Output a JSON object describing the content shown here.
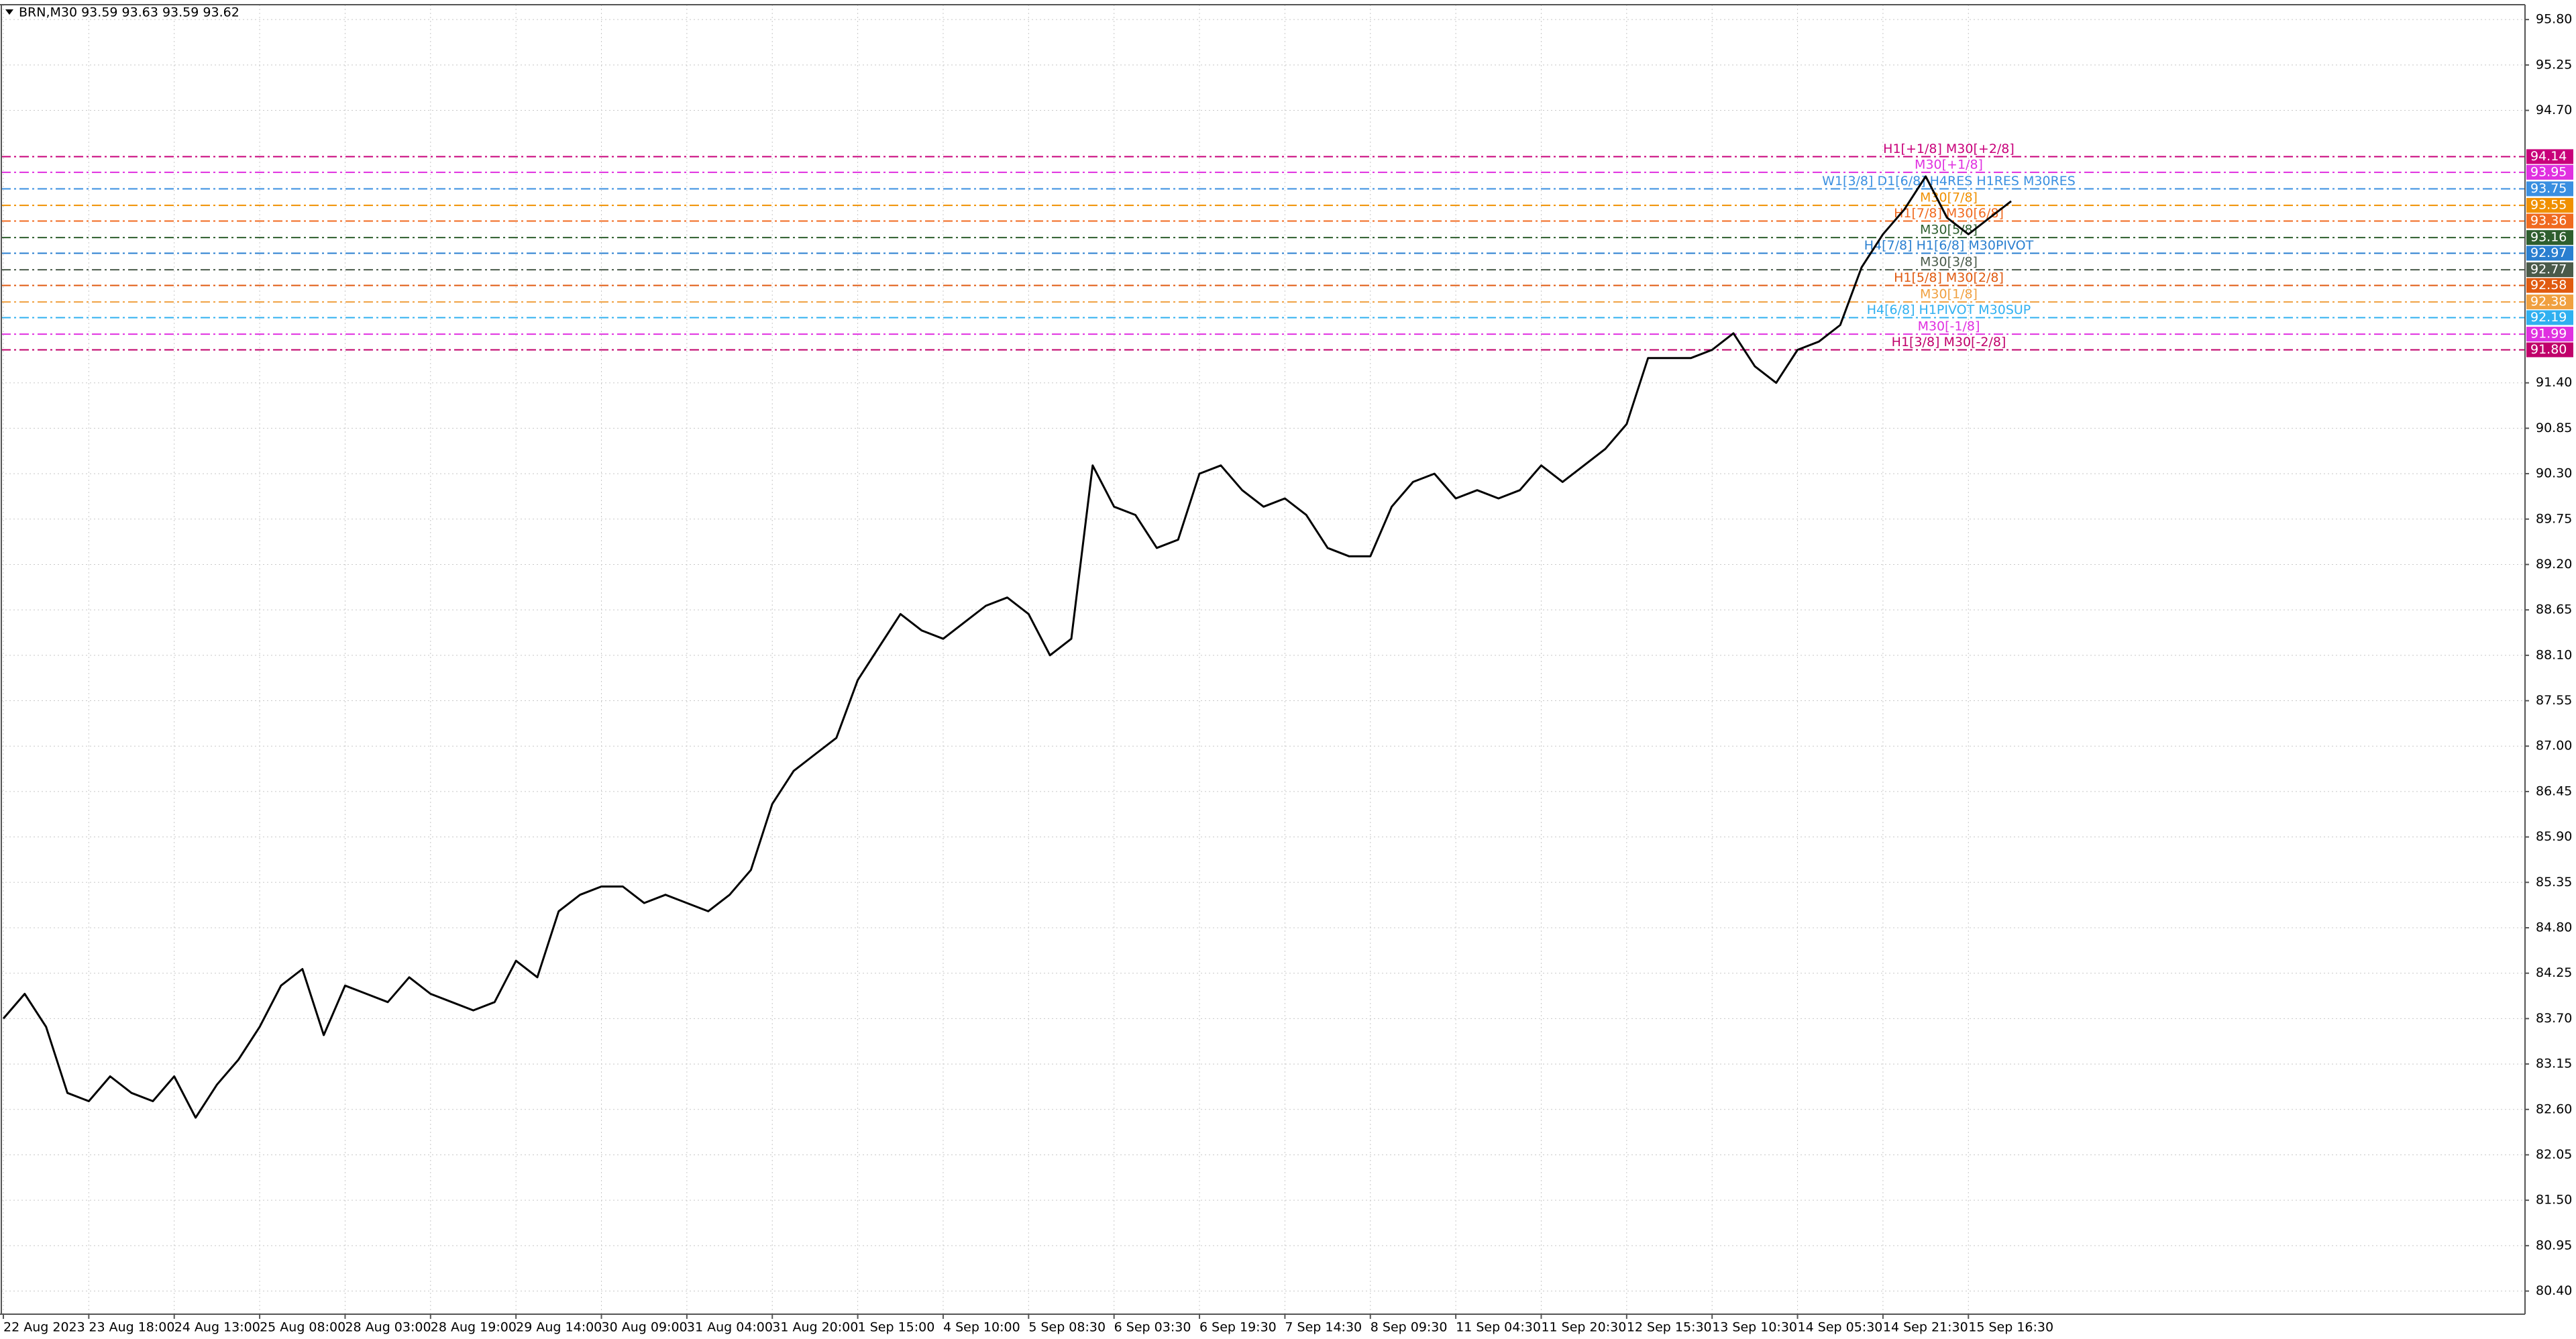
{
  "chart_data": {
    "type": "line",
    "title": "BRN,M30  93.59 93.63 93.59 93.62",
    "color": "#000000",
    "grid": true,
    "categories": [
      "22 Aug 2023",
      null,
      null,
      null,
      "23 Aug 18:00",
      null,
      null,
      null,
      "24 Aug 13:00",
      null,
      null,
      null,
      "25 Aug 08:00",
      null,
      null,
      null,
      "28 Aug 03:00",
      null,
      null,
      null,
      "28 Aug 19:00",
      null,
      null,
      null,
      "29 Aug 14:00",
      null,
      null,
      null,
      "30 Aug 09:00",
      null,
      null,
      null,
      "31 Aug 04:00",
      null,
      null,
      null,
      "31 Aug 20:00",
      null,
      null,
      null,
      "1 Sep 15:00",
      null,
      null,
      null,
      "4 Sep 10:00",
      null,
      null,
      null,
      "5 Sep 08:30",
      null,
      null,
      null,
      "6 Sep 03:30",
      null,
      null,
      null,
      "6 Sep 19:30",
      null,
      null,
      null,
      "7 Sep 14:30",
      null,
      null,
      null,
      "8 Sep 09:30",
      null,
      null,
      null,
      "11 Sep 04:30",
      null,
      null,
      null,
      "11 Sep 20:30",
      null,
      null,
      null,
      "12 Sep 15:30",
      null,
      null,
      null,
      "13 Sep 10:30",
      null,
      null,
      null,
      "14 Sep 05:30",
      null,
      null,
      null,
      "14 Sep 21:30",
      null,
      null,
      null,
      "15 Sep 16:30",
      null,
      null
    ],
    "values": [
      83.7,
      84.0,
      83.6,
      82.8,
      82.7,
      83.0,
      82.8,
      82.7,
      83.0,
      82.5,
      82.9,
      83.2,
      83.6,
      84.1,
      84.3,
      83.5,
      84.1,
      84.0,
      83.9,
      84.2,
      84.0,
      83.9,
      83.8,
      83.9,
      84.4,
      84.2,
      85.0,
      85.2,
      85.3,
      85.3,
      85.1,
      85.2,
      85.1,
      85.0,
      85.2,
      85.5,
      86.3,
      86.7,
      86.9,
      87.1,
      87.8,
      88.2,
      88.6,
      88.4,
      88.3,
      88.5,
      88.7,
      88.8,
      88.6,
      88.1,
      88.3,
      90.4,
      89.9,
      89.8,
      89.4,
      89.5,
      90.3,
      90.4,
      90.1,
      89.9,
      90.0,
      89.8,
      89.4,
      89.3,
      89.3,
      89.9,
      90.2,
      90.3,
      90.0,
      90.1,
      90.0,
      90.1,
      90.4,
      90.2,
      90.4,
      90.6,
      90.9,
      91.7,
      91.7,
      91.7,
      91.8,
      92.0,
      91.6,
      91.4,
      91.8,
      91.9,
      92.1,
      92.8,
      93.2,
      93.5,
      93.9,
      93.4,
      93.2,
      93.4,
      93.6
    ],
    "ylim": [
      80.12,
      95.98
    ],
    "yticks": [
      {
        "value": 95.8,
        "label": "95.80"
      },
      {
        "value": 95.25,
        "label": "95.25"
      },
      {
        "value": 94.7,
        "label": "94.70"
      },
      {
        "value": 91.4,
        "label": "91.40"
      },
      {
        "value": 90.85,
        "label": "90.85"
      },
      {
        "value": 90.3,
        "label": "90.30"
      },
      {
        "value": 89.75,
        "label": "89.75"
      },
      {
        "value": 89.2,
        "label": "89.20"
      },
      {
        "value": 88.65,
        "label": "88.65"
      },
      {
        "value": 88.1,
        "label": "88.10"
      },
      {
        "value": 87.55,
        "label": "87.55"
      },
      {
        "value": 87.0,
        "label": "87.00"
      },
      {
        "value": 86.45,
        "label": "86.45"
      },
      {
        "value": 85.9,
        "label": "85.90"
      },
      {
        "value": 85.35,
        "label": "85.35"
      },
      {
        "value": 84.8,
        "label": "84.80"
      },
      {
        "value": 84.25,
        "label": "84.25"
      },
      {
        "value": 83.7,
        "label": "83.70"
      },
      {
        "value": 83.15,
        "label": "83.15"
      },
      {
        "value": 82.6,
        "label": "82.60"
      },
      {
        "value": 82.05,
        "label": "82.05"
      },
      {
        "value": 81.5,
        "label": "81.50"
      },
      {
        "value": 80.95,
        "label": "80.95"
      },
      {
        "value": 80.4,
        "label": "80.40"
      }
    ],
    "levels": [
      {
        "value": 94.14,
        "label": "94.14",
        "text": "H1[+1/8] M30[+2/8]",
        "color": "#c8007a"
      },
      {
        "value": 93.95,
        "label": "93.95",
        "text": "M30[+1/8]",
        "color": "#e030e0"
      },
      {
        "value": 93.75,
        "label": "93.75",
        "text": "W1[3/8] D1[6/8] H4RES H1RES M30RES",
        "color": "#3a8fe0"
      },
      {
        "value": 93.55,
        "label": "93.55",
        "text": "M30[7/8]",
        "color": "#f09000"
      },
      {
        "value": 93.36,
        "label": "93.36",
        "text": "H1[7/8] M30[6/8]",
        "color": "#f06a20"
      },
      {
        "value": 93.16,
        "label": "93.16",
        "text": "M30[5/8]",
        "color": "#2e5e2e"
      },
      {
        "value": 92.97,
        "label": "92.97",
        "text": "H4[7/8] H1[6/8] M30PIVOT",
        "color": "#2a7fd0"
      },
      {
        "value": 92.77,
        "label": "92.77",
        "text": "M30[3/8]",
        "color": "#4a5a4a"
      },
      {
        "value": 92.58,
        "label": "92.58",
        "text": "H1[5/8] M30[2/8]",
        "color": "#e05a10"
      },
      {
        "value": 92.38,
        "label": "92.38",
        "text": "M30[1/8]",
        "color": "#f0a040"
      },
      {
        "value": 92.19,
        "label": "92.19",
        "text": "H4[6/8] H1PIVOT M30SUP",
        "color": "#30b0f0"
      },
      {
        "value": 91.99,
        "label": "91.99",
        "text": "M30[-1/8]",
        "color": "#e030e0"
      },
      {
        "value": 91.8,
        "label": "91.80",
        "text": "H1[3/8] M30[-2/8]",
        "color": "#c0006a"
      }
    ]
  }
}
